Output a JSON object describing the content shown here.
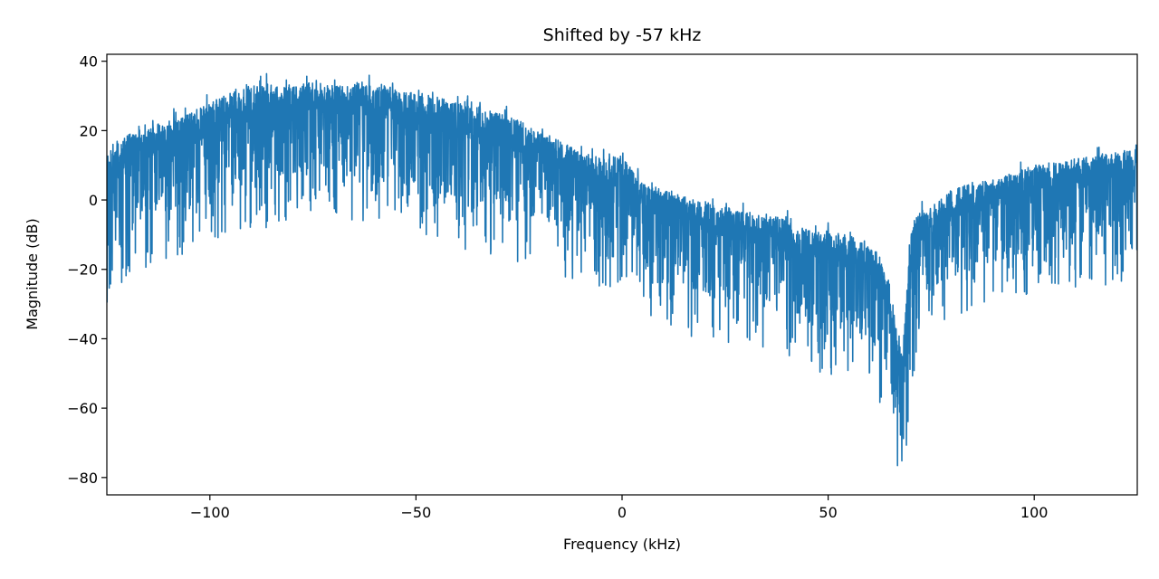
{
  "chart_data": {
    "type": "line",
    "title": "Shifted by -57 kHz",
    "xlabel": "Frequency (kHz)",
    "ylabel": "Magnitude (dB)",
    "xlim": [
      -125,
      125
    ],
    "ylim": [
      -85,
      42
    ],
    "xticks": [
      -100,
      -50,
      0,
      50,
      100
    ],
    "yticks": [
      40,
      20,
      0,
      -20,
      -40,
      -60,
      -80
    ],
    "grid": false,
    "legend": "none",
    "line_color": "#1f77b4",
    "series": [
      {
        "x": [
          -125,
          -120,
          -115,
          -110,
          -105,
          -100,
          -95,
          -90,
          -85,
          -80,
          -75,
          -70,
          -65,
          -60,
          -55,
          -50,
          -45,
          -40,
          -35,
          -30,
          -25,
          -20,
          -15,
          -10,
          -5,
          0,
          5,
          10,
          15,
          20,
          25,
          30,
          35,
          40,
          45,
          50,
          55,
          60,
          62,
          64,
          65,
          66,
          67,
          68,
          69,
          70,
          72,
          75,
          80,
          85,
          90,
          95,
          100,
          105,
          110,
          115,
          120,
          125
        ],
        "upper": [
          15,
          19,
          21,
          23,
          25,
          28,
          31,
          33,
          34,
          33,
          34,
          33,
          34,
          34,
          32,
          31,
          30,
          28,
          27,
          25,
          23,
          20,
          17,
          14,
          12,
          13,
          5,
          3,
          1,
          -1,
          -2,
          -3,
          -4,
          -6,
          -8,
          -9,
          -10,
          -13,
          -15,
          -20,
          -25,
          -32,
          -40,
          -45,
          -28,
          -10,
          -3,
          -2,
          3,
          5,
          6,
          8,
          10,
          11,
          12,
          13,
          14,
          16
        ],
        "lower": [
          -20,
          -10,
          -6,
          -3,
          -2,
          0,
          2,
          5,
          6,
          8,
          8,
          9,
          7,
          7,
          5,
          4,
          2,
          0,
          -2,
          -3,
          -4,
          -6,
          -8,
          -11,
          -13,
          -12,
          -20,
          -24,
          -25,
          -27,
          -28,
          -30,
          -31,
          -33,
          -35,
          -37,
          -38,
          -40,
          -44,
          -50,
          -55,
          -62,
          -72,
          -76,
          -60,
          -40,
          -30,
          -26,
          -22,
          -20,
          -18,
          -17,
          -15,
          -13,
          -12,
          -11,
          -10,
          -9
        ]
      }
    ]
  }
}
